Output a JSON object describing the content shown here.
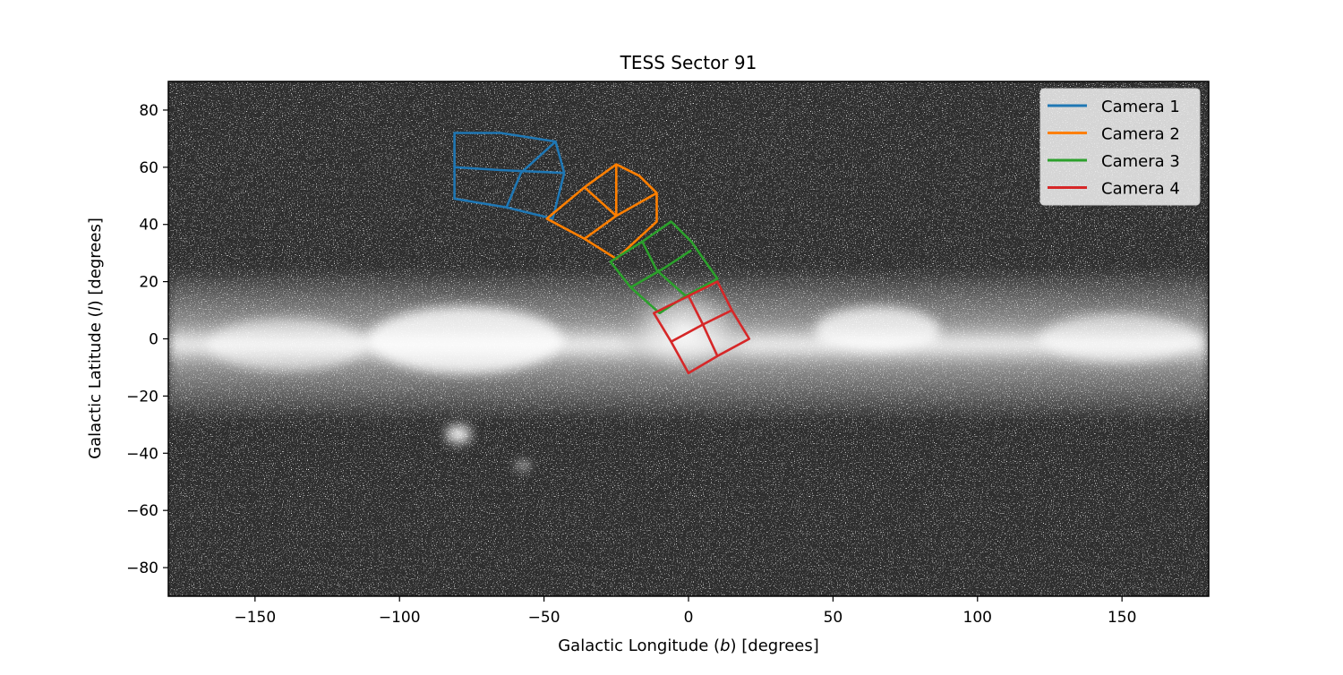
{
  "chart_data": {
    "type": "line",
    "title": "TESS Sector 91",
    "xlabel_parts": [
      "Galactic Longitude (",
      "b",
      ") [degrees]"
    ],
    "ylabel_parts": [
      "Galactic Latitude (",
      "l",
      ") [degrees]"
    ],
    "xlim": [
      -180,
      180
    ],
    "ylim": [
      -90,
      90
    ],
    "xticks": [
      -150,
      -100,
      -50,
      0,
      50,
      100,
      150
    ],
    "yticks": [
      -80,
      -60,
      -40,
      -20,
      0,
      20,
      40,
      60,
      80
    ],
    "grid": false,
    "background": "all-sky star map (grayscale) with Milky Way band along b=0",
    "legend": {
      "position": "top-right"
    },
    "series": [
      {
        "name": "Camera 1",
        "color": "#1f77b4",
        "ccds": [
          [
            [
              -81,
              49
            ],
            [
              -63,
              46
            ],
            [
              -47,
              42
            ],
            [
              -43,
              58
            ],
            [
              -46,
              69
            ],
            [
              -65,
              72
            ],
            [
              -81,
              72
            ],
            [
              -81,
              60
            ]
          ],
          [
            [
              -81,
              60
            ],
            [
              -65,
              59
            ],
            [
              -43,
              58
            ]
          ],
          [
            [
              -63,
              46
            ],
            [
              -58,
              58
            ],
            [
              -46,
              69
            ]
          ]
        ]
      },
      {
        "name": "Camera 2",
        "color": "#ff7f00",
        "ccds": [
          [
            [
              -49,
              42
            ],
            [
              -36,
              35
            ],
            [
              -25,
              28
            ],
            [
              -11,
              41
            ],
            [
              -11,
              51
            ],
            [
              -17,
              57
            ],
            [
              -25,
              61
            ],
            [
              -36,
              53
            ]
          ],
          [
            [
              -36,
              53
            ],
            [
              -25,
              43
            ],
            [
              -11,
              51
            ]
          ],
          [
            [
              -36,
              35
            ],
            [
              -25,
              43
            ],
            [
              -25,
              61
            ]
          ]
        ]
      },
      {
        "name": "Camera 3",
        "color": "#2ca02c",
        "ccds": [
          [
            [
              -27,
              27
            ],
            [
              -16,
              34
            ],
            [
              -6,
              41
            ],
            [
              1,
              34
            ],
            [
              10,
              21
            ],
            [
              -1,
              15
            ],
            [
              -10,
              9
            ],
            [
              -20,
              18
            ]
          ],
          [
            [
              -20,
              18
            ],
            [
              -8,
              25
            ],
            [
              1,
              31
            ]
          ],
          [
            [
              -16,
              34
            ],
            [
              -11,
              24
            ],
            [
              -1,
              15
            ]
          ]
        ]
      },
      {
        "name": "Camera 4",
        "color": "#d62728",
        "ccds": [
          [
            [
              -12,
              9
            ],
            [
              0,
              15
            ],
            [
              10,
              20
            ],
            [
              15,
              10
            ],
            [
              21,
              0
            ],
            [
              10,
              -6
            ],
            [
              0,
              -12
            ],
            [
              -6,
              -1
            ]
          ],
          [
            [
              -6,
              -1
            ],
            [
              5,
              5
            ],
            [
              15,
              10
            ]
          ],
          [
            [
              0,
              15
            ],
            [
              5,
              5
            ],
            [
              10,
              -6
            ]
          ]
        ]
      }
    ]
  }
}
